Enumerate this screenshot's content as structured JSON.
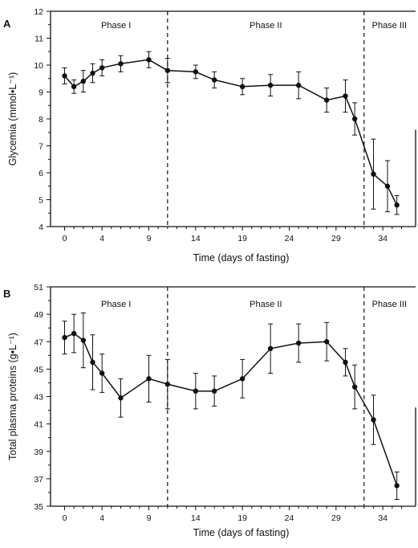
{
  "chart_data": [
    {
      "type": "line",
      "panel_label": "A",
      "xlabel": "Time (days of fasting)",
      "ylabel": "Glycemia (mmol•L⁻¹)",
      "xlim": [
        -1.5,
        37.5
      ],
      "ylim": [
        4,
        12
      ],
      "xticks": [
        0,
        4,
        9,
        14,
        19,
        24,
        29,
        34
      ],
      "yticks": [
        4,
        5,
        6,
        7,
        8,
        9,
        10,
        11,
        12
      ],
      "phase_boundaries": [
        11,
        32
      ],
      "phases": [
        {
          "label": "Phase I",
          "x": 5.5
        },
        {
          "label": "Phase II",
          "x": 21.5
        },
        {
          "label": "Phase III",
          "x": 34.7
        }
      ],
      "series": [
        {
          "x": [
            0,
            1,
            2,
            3,
            4,
            6,
            9,
            11,
            14,
            16,
            19,
            22,
            25,
            28,
            30,
            31,
            33,
            34.5,
            35.5
          ],
          "y": [
            9.6,
            9.2,
            9.4,
            9.7,
            9.9,
            10.05,
            10.2,
            9.8,
            9.75,
            9.45,
            9.2,
            9.25,
            9.25,
            8.7,
            8.85,
            8.0,
            5.95,
            5.5,
            4.8
          ],
          "err": [
            0.3,
            0.25,
            0.4,
            0.35,
            0.3,
            0.3,
            0.3,
            0.45,
            0.25,
            0.3,
            0.3,
            0.4,
            0.5,
            0.45,
            0.6,
            0.6,
            1.3,
            0.95,
            0.35
          ]
        }
      ]
    },
    {
      "type": "line",
      "panel_label": "B",
      "xlabel": "Time (days of fasting)",
      "ylabel": "Total plasma proteins (g•L⁻¹)",
      "xlim": [
        -1.5,
        37.5
      ],
      "ylim": [
        35,
        51
      ],
      "xticks": [
        0,
        4,
        9,
        14,
        19,
        24,
        29,
        34
      ],
      "yticks": [
        35,
        37,
        39,
        41,
        43,
        45,
        47,
        49,
        51
      ],
      "phase_boundaries": [
        11,
        32
      ],
      "phases": [
        {
          "label": "Phase I",
          "x": 5.5
        },
        {
          "label": "Phase II",
          "x": 21.5
        },
        {
          "label": "Phase III",
          "x": 34.7
        }
      ],
      "series": [
        {
          "x": [
            0,
            1,
            2,
            3,
            4,
            6,
            9,
            11,
            14,
            16,
            19,
            22,
            25,
            28,
            30,
            31,
            33,
            35.5
          ],
          "y": [
            47.3,
            47.6,
            47.1,
            45.5,
            44.7,
            42.9,
            44.3,
            43.9,
            43.4,
            43.4,
            44.3,
            46.5,
            46.9,
            47.0,
            45.5,
            43.7,
            41.3,
            36.5
          ],
          "err": [
            1.2,
            1.4,
            2.0,
            2.0,
            1.4,
            1.4,
            1.7,
            1.8,
            1.3,
            1.1,
            1.4,
            1.8,
            1.4,
            1.4,
            1.0,
            1.6,
            1.8,
            1.0
          ]
        }
      ]
    }
  ]
}
